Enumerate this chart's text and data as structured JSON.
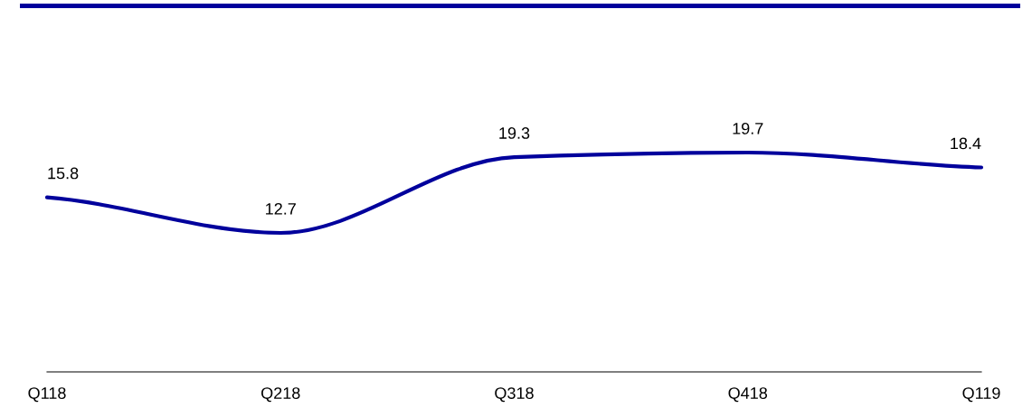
{
  "chart_data": {
    "type": "line",
    "categories": [
      "Q118",
      "Q218",
      "Q318",
      "Q418",
      "Q119"
    ],
    "series": [
      {
        "color": "#00009c",
        "values": [
          15.8,
          12.7,
          19.3,
          19.7,
          18.4
        ]
      }
    ],
    "data_labels": true,
    "marker": "none",
    "line_style": "solid",
    "tick_labels": "x"
  }
}
